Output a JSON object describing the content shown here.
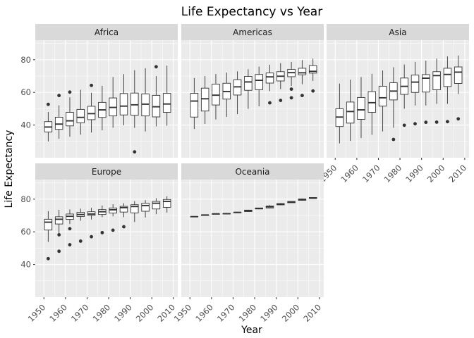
{
  "chart_data": {
    "type": "box",
    "title": "Life Expectancy vs Year",
    "xlabel": "Year",
    "ylabel": "Life Expectancy",
    "xlim": [
      1946,
      2012
    ],
    "ylim": [
      20,
      92
    ],
    "x_ticks": [
      "1950",
      "1960",
      "1970",
      "1980",
      "1990",
      "2000",
      "2010"
    ],
    "y_ticks": [
      "40",
      "60",
      "80"
    ],
    "grid": true,
    "facet_layout": "3 columns x 2 rows",
    "years": [
      1952,
      1957,
      1962,
      1967,
      1972,
      1977,
      1982,
      1987,
      1992,
      1997,
      2002,
      2007
    ],
    "facets": [
      {
        "name": "Africa",
        "boxes": [
          {
            "year": 1952,
            "min": 30.0,
            "q1": 35.8,
            "median": 38.8,
            "q3": 42.1,
            "max": 48.0,
            "outliers": [
              52.7
            ]
          },
          {
            "year": 1957,
            "min": 31.6,
            "q1": 37.4,
            "median": 40.6,
            "q3": 44.8,
            "max": 52.1,
            "outliers": [
              58.1
            ]
          },
          {
            "year": 1962,
            "min": 32.8,
            "q1": 39.5,
            "median": 42.6,
            "q3": 47.8,
            "max": 57.0,
            "outliers": [
              60.2
            ]
          },
          {
            "year": 1967,
            "min": 34.1,
            "q1": 41.4,
            "median": 44.7,
            "q3": 49.6,
            "max": 61.6,
            "outliers": []
          },
          {
            "year": 1972,
            "min": 35.4,
            "q1": 43.3,
            "median": 47.0,
            "q3": 51.5,
            "max": 59.8,
            "outliers": [
              64.3
            ]
          },
          {
            "year": 1977,
            "min": 36.8,
            "q1": 44.7,
            "median": 49.3,
            "q3": 53.9,
            "max": 64.0,
            "outliers": []
          },
          {
            "year": 1982,
            "min": 38.4,
            "q1": 45.6,
            "median": 50.8,
            "q3": 56.6,
            "max": 69.4,
            "outliers": []
          },
          {
            "year": 1987,
            "min": 39.9,
            "q1": 46.2,
            "median": 51.6,
            "q3": 59.3,
            "max": 71.2,
            "outliers": []
          },
          {
            "year": 1992,
            "min": 38.3,
            "q1": 46.0,
            "median": 52.4,
            "q3": 59.6,
            "max": 73.6,
            "outliers": [
              23.6
            ]
          },
          {
            "year": 1997,
            "min": 36.1,
            "q1": 45.6,
            "median": 52.8,
            "q3": 59.1,
            "max": 74.8,
            "outliers": []
          },
          {
            "year": 2002,
            "min": 39.2,
            "q1": 45.0,
            "median": 51.2,
            "q3": 58.2,
            "max": 70.0,
            "outliers": [
              75.7
            ]
          },
          {
            "year": 2007,
            "min": 39.6,
            "q1": 47.8,
            "median": 52.9,
            "q3": 59.4,
            "max": 76.4,
            "outliers": []
          }
        ]
      },
      {
        "name": "Americas",
        "boxes": [
          {
            "year": 1952,
            "min": 37.6,
            "q1": 44.9,
            "median": 54.7,
            "q3": 59.4,
            "max": 68.8,
            "outliers": []
          },
          {
            "year": 1957,
            "min": 40.7,
            "q1": 48.6,
            "median": 56.1,
            "q3": 62.6,
            "max": 70.0,
            "outliers": []
          },
          {
            "year": 1962,
            "min": 43.4,
            "q1": 52.3,
            "median": 58.3,
            "q3": 65.1,
            "max": 71.3,
            "outliers": []
          },
          {
            "year": 1967,
            "min": 45.0,
            "q1": 55.9,
            "median": 60.5,
            "q3": 65.6,
            "max": 72.1,
            "outliers": []
          },
          {
            "year": 1972,
            "min": 46.7,
            "q1": 58.4,
            "median": 63.4,
            "q3": 67.8,
            "max": 72.9,
            "outliers": []
          },
          {
            "year": 1977,
            "min": 49.9,
            "q1": 61.3,
            "median": 66.4,
            "q3": 69.8,
            "max": 74.2,
            "outliers": []
          },
          {
            "year": 1982,
            "min": 51.5,
            "q1": 61.7,
            "median": 67.4,
            "q3": 71.0,
            "max": 75.8,
            "outliers": []
          },
          {
            "year": 1987,
            "min": 60.8,
            "q1": 65.7,
            "median": 69.5,
            "q3": 71.9,
            "max": 76.9,
            "outliers": [
              53.6
            ]
          },
          {
            "year": 1992,
            "min": 62.0,
            "q1": 67.0,
            "median": 69.9,
            "q3": 72.7,
            "max": 77.9,
            "outliers": [
              55.1
            ]
          },
          {
            "year": 1997,
            "min": 64.0,
            "q1": 69.6,
            "median": 72.1,
            "q3": 74.1,
            "max": 78.6,
            "outliers": [
              56.7,
              62.0
            ]
          },
          {
            "year": 2002,
            "min": 65.0,
            "q1": 70.8,
            "median": 72.0,
            "q3": 74.8,
            "max": 79.8,
            "outliers": [
              58.1
            ]
          },
          {
            "year": 2007,
            "min": 67.0,
            "q1": 71.8,
            "median": 72.9,
            "q3": 76.4,
            "max": 80.7,
            "outliers": [
              60.9
            ]
          }
        ]
      },
      {
        "name": "Asia",
        "boxes": [
          {
            "year": 1952,
            "min": 28.8,
            "q1": 39.1,
            "median": 44.9,
            "q3": 50.0,
            "max": 65.4,
            "outliers": []
          },
          {
            "year": 1957,
            "min": 30.3,
            "q1": 41.2,
            "median": 48.3,
            "q3": 54.1,
            "max": 67.8,
            "outliers": []
          },
          {
            "year": 1962,
            "min": 32.0,
            "q1": 43.5,
            "median": 49.3,
            "q3": 56.9,
            "max": 69.4,
            "outliers": []
          },
          {
            "year": 1967,
            "min": 34.0,
            "q1": 47.8,
            "median": 53.7,
            "q3": 60.5,
            "max": 71.4,
            "outliers": []
          },
          {
            "year": 1972,
            "min": 36.1,
            "q1": 51.6,
            "median": 56.7,
            "q3": 63.8,
            "max": 73.4,
            "outliers": []
          },
          {
            "year": 1977,
            "min": 38.4,
            "q1": 55.4,
            "median": 60.8,
            "q3": 65.9,
            "max": 75.4,
            "outliers": [
              31.2
            ]
          },
          {
            "year": 1982,
            "min": 50.0,
            "q1": 58.8,
            "median": 63.7,
            "q3": 68.8,
            "max": 77.1,
            "outliers": [
              39.9
            ]
          },
          {
            "year": 1987,
            "min": 52.0,
            "q1": 60.0,
            "median": 66.3,
            "q3": 70.6,
            "max": 78.7,
            "outliers": [
              40.8
            ]
          },
          {
            "year": 1992,
            "min": 52.0,
            "q1": 60.2,
            "median": 68.7,
            "q3": 70.9,
            "max": 79.4,
            "outliers": [
              41.7
            ]
          },
          {
            "year": 1997,
            "min": 53.0,
            "q1": 61.6,
            "median": 70.3,
            "q3": 72.7,
            "max": 80.7,
            "outliers": [
              41.8
            ]
          },
          {
            "year": 2002,
            "min": 53.0,
            "q1": 63.6,
            "median": 71.0,
            "q3": 74.8,
            "max": 82.0,
            "outliers": [
              42.1
            ]
          },
          {
            "year": 2007,
            "min": 59.0,
            "q1": 65.5,
            "median": 72.4,
            "q3": 75.6,
            "max": 82.6,
            "outliers": [
              43.8
            ]
          }
        ]
      },
      {
        "name": "Europe",
        "boxes": [
          {
            "year": 1952,
            "min": 53.8,
            "q1": 61.1,
            "median": 65.9,
            "q3": 67.7,
            "max": 72.7,
            "outliers": [
              43.6
            ]
          },
          {
            "year": 1957,
            "min": 59.3,
            "q1": 64.8,
            "median": 67.7,
            "q3": 69.2,
            "max": 73.5,
            "outliers": [
              48.1,
              58.2
            ]
          },
          {
            "year": 1962,
            "min": 64.8,
            "q1": 67.6,
            "median": 69.5,
            "q3": 70.9,
            "max": 73.7,
            "outliers": [
              52.1,
              61.9
            ]
          },
          {
            "year": 1967,
            "min": 66.8,
            "q1": 69.4,
            "median": 70.6,
            "q3": 71.9,
            "max": 74.2,
            "outliers": [
              54.3
            ]
          },
          {
            "year": 1972,
            "min": 67.6,
            "q1": 70.1,
            "median": 70.9,
            "q3": 72.3,
            "max": 74.7,
            "outliers": [
              57.0
            ]
          },
          {
            "year": 1977,
            "min": 69.0,
            "q1": 70.6,
            "median": 72.3,
            "q3": 73.6,
            "max": 76.1,
            "outliers": [
              59.5
            ]
          },
          {
            "year": 1982,
            "min": 69.5,
            "q1": 71.5,
            "median": 73.5,
            "q3": 74.6,
            "max": 76.9,
            "outliers": [
              61.0
            ]
          },
          {
            "year": 1987,
            "min": 69.0,
            "q1": 72.1,
            "median": 74.8,
            "q3": 75.6,
            "max": 77.5,
            "outliers": [
              63.1
            ]
          },
          {
            "year": 1992,
            "min": 66.0,
            "q1": 71.6,
            "median": 75.5,
            "q3": 76.6,
            "max": 78.8,
            "outliers": []
          },
          {
            "year": 1997,
            "min": 68.8,
            "q1": 72.6,
            "median": 76.1,
            "q3": 77.5,
            "max": 79.4,
            "outliers": []
          },
          {
            "year": 2002,
            "min": 70.8,
            "q1": 74.0,
            "median": 77.5,
            "q3": 78.6,
            "max": 80.6,
            "outliers": []
          },
          {
            "year": 2007,
            "min": 71.8,
            "q1": 75.0,
            "median": 78.6,
            "q3": 79.8,
            "max": 81.8,
            "outliers": []
          }
        ]
      },
      {
        "name": "Oceania",
        "boxes": [
          {
            "year": 1952,
            "min": 69.1,
            "q1": 69.1,
            "median": 69.3,
            "q3": 69.4,
            "max": 69.4,
            "outliers": []
          },
          {
            "year": 1957,
            "min": 70.3,
            "q1": 70.3,
            "median": 70.3,
            "q3": 70.3,
            "max": 70.3,
            "outliers": []
          },
          {
            "year": 1962,
            "min": 70.9,
            "q1": 70.9,
            "median": 71.0,
            "q3": 71.0,
            "max": 71.0,
            "outliers": []
          },
          {
            "year": 1967,
            "min": 71.1,
            "q1": 71.1,
            "median": 71.1,
            "q3": 71.2,
            "max": 71.2,
            "outliers": []
          },
          {
            "year": 1972,
            "min": 71.9,
            "q1": 71.9,
            "median": 71.9,
            "q3": 71.9,
            "max": 71.9,
            "outliers": []
          },
          {
            "year": 1977,
            "min": 72.2,
            "q1": 72.4,
            "median": 72.9,
            "q3": 73.3,
            "max": 73.5,
            "outliers": []
          },
          {
            "year": 1982,
            "min": 73.8,
            "q1": 74.0,
            "median": 74.3,
            "q3": 74.6,
            "max": 74.7,
            "outliers": []
          },
          {
            "year": 1987,
            "min": 74.3,
            "q1": 74.6,
            "median": 75.3,
            "q3": 75.8,
            "max": 76.3,
            "outliers": []
          },
          {
            "year": 1992,
            "min": 76.3,
            "q1": 76.5,
            "median": 76.9,
            "q3": 77.3,
            "max": 77.6,
            "outliers": []
          },
          {
            "year": 1997,
            "min": 77.6,
            "q1": 77.8,
            "median": 78.2,
            "q3": 78.6,
            "max": 78.8,
            "outliers": []
          },
          {
            "year": 2002,
            "min": 79.1,
            "q1": 79.3,
            "median": 79.7,
            "q3": 80.1,
            "max": 80.4,
            "outliers": []
          },
          {
            "year": 2007,
            "min": 80.2,
            "q1": 80.4,
            "median": 80.7,
            "q3": 81.0,
            "max": 81.2,
            "outliers": []
          }
        ]
      }
    ],
    "colors": {
      "panel_bg": "#ebebeb",
      "strip_bg": "#d9d9d9",
      "grid_major": "#ffffff",
      "box_fill": "#ffffff",
      "box_line": "#333333"
    }
  }
}
